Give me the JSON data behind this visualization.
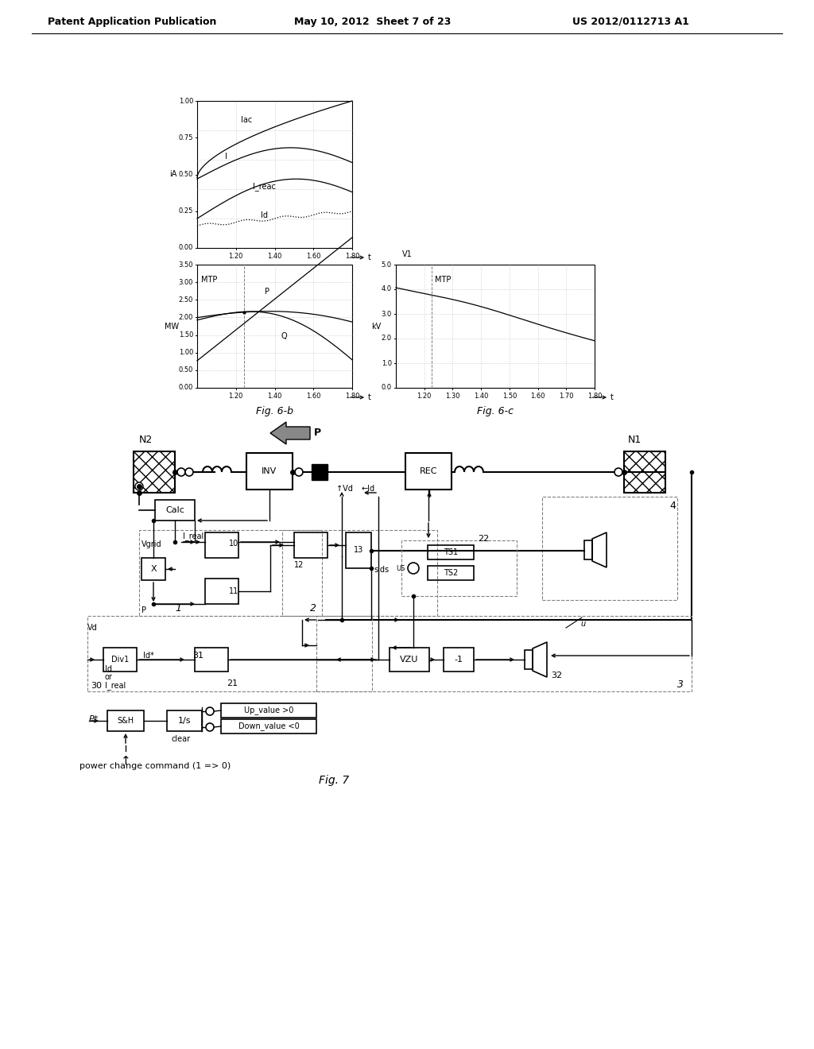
{
  "header_left": "Patent Application Publication",
  "header_mid": "May 10, 2012  Sheet 7 of 23",
  "header_right": "US 2012/0112713 A1",
  "fig_caption_b": "Fig. 6-b",
  "fig_caption_c": "Fig. 6-c",
  "fig_caption_7": "Fig. 7",
  "background": "#ffffff"
}
